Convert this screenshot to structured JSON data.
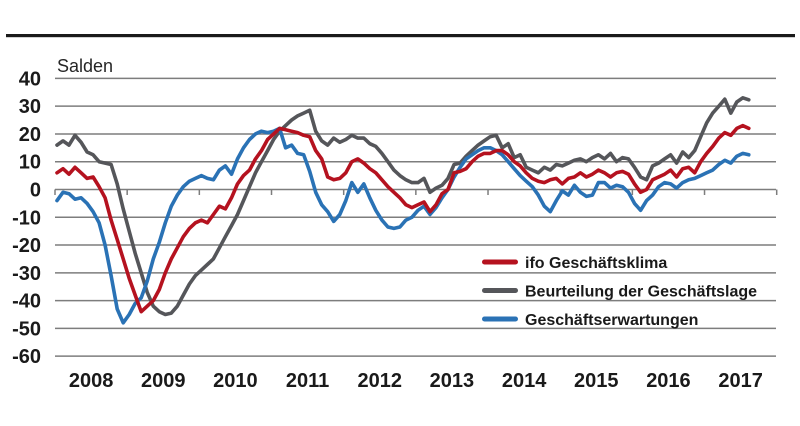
{
  "page": {
    "background": "#ffffff",
    "top_rule_color": "#1a1a1a"
  },
  "chart_data": {
    "type": "line",
    "title": "Salden",
    "x_start": "2008-01",
    "x_freq": "monthly",
    "x_tick_labels": [
      "2008",
      "2009",
      "2010",
      "2011",
      "2012",
      "2013",
      "2014",
      "2015",
      "2016",
      "2017"
    ],
    "y_ticks": [
      40,
      30,
      20,
      10,
      0,
      -10,
      -20,
      -30,
      -40,
      -50,
      -60
    ],
    "ylim": [
      -60,
      40
    ],
    "grid": "horizontal-only",
    "grid_color": "#7d7d7d",
    "text_color": "#1a1a1a",
    "legend_position": "inside-bottom-right",
    "series": [
      {
        "id": "ifo-geschaeftsklima",
        "name": "ifo Geschäftsklima",
        "color": "#b5121f",
        "values": [
          6,
          7.5,
          5.5,
          8,
          6,
          4,
          4.5,
          1,
          -3,
          -11,
          -18,
          -25,
          -32,
          -38,
          -44,
          -42,
          -40,
          -36,
          -30,
          -25,
          -21,
          -17,
          -14,
          -12,
          -11,
          -12,
          -9,
          -6,
          -7,
          -3,
          2,
          5,
          7,
          11,
          14,
          18,
          20,
          22,
          21.5,
          21,
          20.5,
          19.5,
          19,
          14,
          11,
          4.5,
          3.5,
          4,
          6,
          10,
          11,
          9.5,
          7.5,
          6,
          3.5,
          1,
          -1,
          -3,
          -5.5,
          -6.5,
          -5.5,
          -4.5,
          -8,
          -5.5,
          -1.5,
          0,
          6,
          6.5,
          7.5,
          10,
          12,
          13,
          13,
          14,
          14,
          12.5,
          10,
          8.5,
          6,
          4,
          3,
          2.5,
          3.5,
          4,
          2,
          4,
          4.5,
          6,
          4.5,
          5.5,
          7,
          6,
          4.5,
          6,
          6.5,
          5.5,
          2,
          -1,
          0,
          3.5,
          4.5,
          5.5,
          7,
          4.5,
          7.5,
          8,
          6,
          10,
          13,
          15.5,
          18.5,
          20.5,
          19.5,
          22,
          23,
          22
        ]
      },
      {
        "id": "beurteilung-der-geschaeftslage",
        "name": "Beurteilung der Geschäftslage",
        "color": "#55565a",
        "values": [
          16,
          17.5,
          16,
          19.5,
          17,
          13.5,
          12.5,
          10,
          9.5,
          9,
          2,
          -7,
          -15,
          -23,
          -30,
          -37,
          -42,
          -44,
          -45,
          -44.5,
          -42,
          -38,
          -34,
          -31,
          -29,
          -27,
          -25,
          -21,
          -17,
          -13,
          -9,
          -4,
          1,
          6,
          10,
          14,
          18,
          21,
          23,
          25,
          26.5,
          27.5,
          28.5,
          21,
          17.5,
          16,
          18.5,
          17,
          18,
          19.5,
          18.5,
          18.5,
          16.5,
          15.5,
          13,
          10,
          7,
          5,
          3.5,
          2.5,
          2.5,
          4,
          -1,
          0.5,
          1.5,
          4,
          9,
          9.5,
          12,
          14,
          16,
          17.5,
          19,
          19.5,
          15,
          16.5,
          11.5,
          12.5,
          8,
          7,
          6,
          8,
          7,
          9,
          8.5,
          9.5,
          10.5,
          11,
          10,
          11.5,
          12.5,
          11,
          13,
          10,
          11.5,
          11,
          8,
          4.5,
          3.5,
          8.5,
          9.5,
          11,
          12.5,
          9.5,
          13.5,
          11.5,
          14,
          19,
          24,
          27.5,
          30,
          32.5,
          27.5,
          31.5,
          33,
          32.3
        ]
      },
      {
        "id": "geschaeftserwartungen",
        "name": "Geschäftserwartungen",
        "color": "#2a72b5",
        "values": [
          -4,
          -1,
          -1.5,
          -3.5,
          -3,
          -5,
          -8,
          -12,
          -20,
          -31,
          -43,
          -48,
          -45,
          -41,
          -39,
          -33,
          -25,
          -19,
          -12,
          -6,
          -2,
          1,
          3,
          4,
          5,
          4,
          3.5,
          7,
          8.5,
          5.5,
          11,
          15,
          18,
          20,
          21,
          20.5,
          21,
          22,
          15,
          16,
          13,
          12.5,
          6.5,
          -1,
          -5.5,
          -8,
          -11.5,
          -9,
          -4,
          2.5,
          -1,
          2,
          -3,
          -7.5,
          -11,
          -13.5,
          -14,
          -13.5,
          -11,
          -10,
          -7.5,
          -6,
          -9,
          -6.5,
          -3,
          0,
          4.5,
          8,
          11,
          12.5,
          14,
          15,
          15,
          14,
          12.5,
          10,
          7.5,
          5,
          3,
          1,
          -2,
          -6,
          -8,
          -4,
          -0.5,
          -2,
          1.5,
          -1,
          -2.5,
          -2,
          2.5,
          2.5,
          0.5,
          1.5,
          1,
          -1,
          -5,
          -7.5,
          -4,
          -2,
          1,
          2.5,
          2,
          0.5,
          2.5,
          3.5,
          4,
          5,
          6,
          7,
          9,
          10.5,
          9.5,
          12,
          13,
          12.5
        ]
      }
    ]
  }
}
